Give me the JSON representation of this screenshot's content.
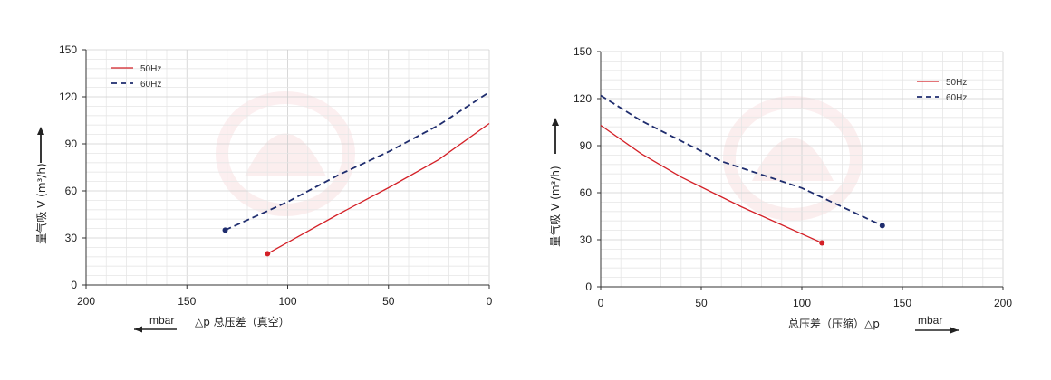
{
  "chart_data": [
    {
      "type": "line",
      "xlabel": "△p 总压差（真空）",
      "x_unit": "mbar",
      "ylabel": "量气吸 V (m³/h)",
      "xlim": [
        200,
        0
      ],
      "ylim": [
        0,
        150
      ],
      "x_ticks": [
        "200",
        "150",
        "100",
        "50",
        "0"
      ],
      "y_ticks": [
        "0",
        "30",
        "60",
        "90",
        "120",
        "150"
      ],
      "grid": true,
      "legend_position": "top-left",
      "series": [
        {
          "name": "50Hz",
          "color": "#d42027",
          "dash": false,
          "x": [
            110,
            75,
            50,
            25,
            0
          ],
          "y": [
            20,
            45,
            62,
            80,
            103
          ]
        },
        {
          "name": "60Hz",
          "color": "#1f2d6e",
          "dash": true,
          "x": [
            131,
            100,
            75,
            50,
            25,
            0
          ],
          "y": [
            35,
            53,
            70,
            85,
            102,
            123
          ]
        }
      ]
    },
    {
      "type": "line",
      "xlabel": "总压差（压缩）△p",
      "x_unit": "mbar",
      "ylabel": "量气吸 V (m³/h)",
      "xlim": [
        0,
        200
      ],
      "ylim": [
        0,
        150
      ],
      "x_ticks": [
        "0",
        "50",
        "100",
        "150",
        "200"
      ],
      "y_ticks": [
        "0",
        "30",
        "60",
        "90",
        "120",
        "150"
      ],
      "grid": true,
      "legend_position": "top-right",
      "series": [
        {
          "name": "50Hz",
          "color": "#d42027",
          "dash": false,
          "x": [
            0,
            20,
            40,
            70,
            110
          ],
          "y": [
            103,
            85,
            70,
            51,
            28
          ]
        },
        {
          "name": "60Hz",
          "color": "#1f2d6e",
          "dash": true,
          "x": [
            0,
            20,
            40,
            60,
            100,
            140
          ],
          "y": [
            122,
            106,
            93,
            80,
            63,
            39
          ]
        }
      ]
    }
  ]
}
